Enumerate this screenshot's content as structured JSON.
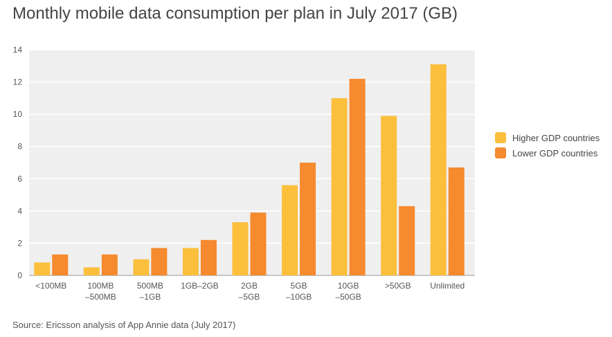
{
  "chart_data": {
    "type": "bar",
    "title": "Monthly mobile data consumption per plan in July 2017 (GB)",
    "source": "Source: Ericsson analysis of App Annie data (July 2017)",
    "categories": [
      [
        "<100MB"
      ],
      [
        "100MB",
        "–500MB"
      ],
      [
        "500MB",
        "–1GB"
      ],
      [
        "1GB–2GB"
      ],
      [
        "2GB",
        "–5GB"
      ],
      [
        "5GB",
        "–10GB"
      ],
      [
        "10GB",
        "–50GB"
      ],
      [
        ">50GB"
      ],
      [
        "Unlimited"
      ]
    ],
    "series": [
      {
        "name": "Higher GDP countries",
        "color": "#FBBF3C",
        "values": [
          0.8,
          0.5,
          1.0,
          1.7,
          3.3,
          5.6,
          11.0,
          9.9,
          13.1
        ]
      },
      {
        "name": "Lower GDP countries",
        "color": "#F58A2E",
        "values": [
          1.3,
          1.3,
          1.7,
          2.2,
          3.9,
          7.0,
          12.2,
          4.3,
          6.7
        ]
      }
    ],
    "ylim": [
      0,
      14
    ],
    "yticks": [
      0,
      2,
      4,
      6,
      8,
      10,
      12,
      14
    ],
    "grid": true,
    "legend": "right"
  }
}
